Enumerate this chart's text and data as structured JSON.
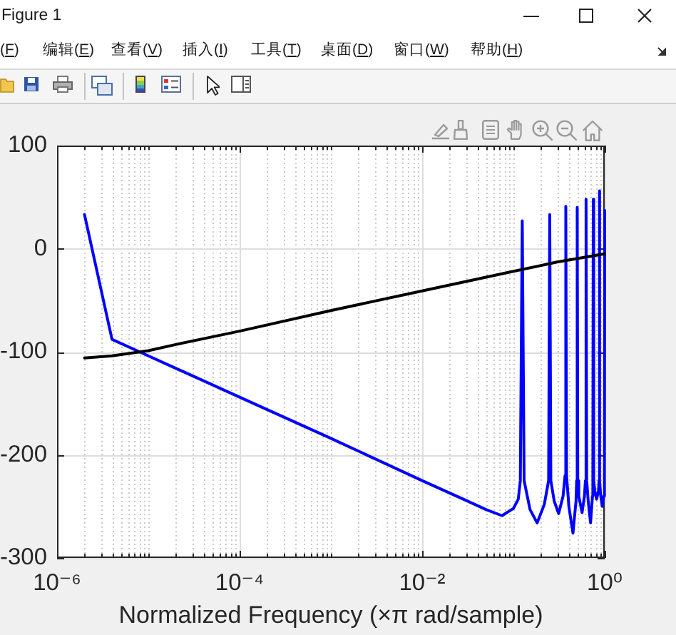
{
  "chart_data": {
    "type": "line",
    "xlabel": "Normalized Frequency (×π rad/sample)",
    "annotations": [
      "Figure 1",
      "(F)",
      "编辑(E)",
      "查看(V)",
      "插入(I)",
      "工具(T)",
      "桌面(D)",
      "窗口(W)",
      "帮助(H)"
    ],
    "series": [
      {
        "color": "#0000ff",
        "x": [
          2e-06,
          4e-06,
          1e-05,
          0.0001,
          0.001,
          0.01,
          0.03,
          0.05,
          0.075,
          0.1,
          0.113,
          0.119,
          0.125,
          0.131,
          0.152,
          0.182,
          0.218,
          0.243,
          0.25,
          0.257,
          0.28,
          0.313,
          0.35,
          0.368,
          0.375,
          0.382,
          0.405,
          0.449,
          0.485,
          0.493,
          0.5,
          0.507,
          0.52,
          0.565,
          0.6,
          0.615,
          0.625,
          0.635,
          0.66,
          0.7,
          0.735,
          0.742,
          0.75,
          0.758,
          0.78,
          0.815,
          0.855,
          0.868,
          0.875,
          0.882,
          0.905,
          0.94,
          0.975,
          0.993,
          1
        ],
        "values": [
          33,
          -88,
          -104,
          -144,
          -184,
          -225,
          -244,
          -253,
          -259,
          -252,
          -243,
          -225,
          27,
          -225,
          -253,
          -266,
          -248,
          -225,
          33,
          -225,
          -245,
          -257,
          -240,
          -220,
          41,
          -220,
          -250,
          -276,
          -245,
          -225,
          40,
          -225,
          -240,
          -256,
          -240,
          -225,
          48,
          -225,
          -245,
          -266,
          -240,
          -225,
          48,
          -225,
          -235,
          -243,
          -235,
          -225,
          56,
          -225,
          -240,
          -250,
          -240,
          -225,
          37
        ]
      },
      {
        "color": "#000000",
        "x": [
          2e-06,
          4e-06,
          1e-05,
          2e-05,
          0.0001,
          0.001,
          0.01,
          0.1,
          0.3,
          1
        ],
        "values": [
          -106,
          -104,
          -99,
          -93,
          -80,
          -60,
          -41,
          -22,
          -13,
          -5
        ]
      }
    ],
    "xlim": [
      1e-06,
      1
    ],
    "ylim": [
      -300,
      100
    ],
    "xticks": [
      {
        "value": 1e-06,
        "label": "10⁻⁶"
      },
      {
        "value": 2e-06,
        "label": null
      },
      {
        "value": 3e-06,
        "label": null
      },
      {
        "value": 4e-06,
        "label": null
      },
      {
        "value": 5e-06,
        "label": null
      },
      {
        "value": 6e-06,
        "label": null
      },
      {
        "value": 7e-06,
        "label": null
      },
      {
        "value": 8e-06,
        "label": null
      },
      {
        "value": 9e-06,
        "label": null
      },
      {
        "value": 1e-05,
        "label": null
      },
      {
        "value": 2e-05,
        "label": null
      },
      {
        "value": 3e-05,
        "label": null
      },
      {
        "value": 4e-05,
        "label": null
      },
      {
        "value": 5e-05,
        "label": null
      },
      {
        "value": 6e-05,
        "label": null
      },
      {
        "value": 7e-05,
        "label": null
      },
      {
        "value": 8e-05,
        "label": null
      },
      {
        "value": 9e-05,
        "label": null
      },
      {
        "value": 0.0001,
        "label": "10⁻⁴"
      },
      {
        "value": 0.0002,
        "label": null
      },
      {
        "value": 0.0003,
        "label": null
      },
      {
        "value": 0.0004,
        "label": null
      },
      {
        "value": 0.0005,
        "label": null
      },
      {
        "value": 0.0006,
        "label": null
      },
      {
        "value": 0.0007,
        "label": null
      },
      {
        "value": 0.0008,
        "label": null
      },
      {
        "value": 0.0009,
        "label": null
      },
      {
        "value": 0.001,
        "label": null
      },
      {
        "value": 0.002,
        "label": null
      },
      {
        "value": 0.003,
        "label": null
      },
      {
        "value": 0.004,
        "label": null
      },
      {
        "value": 0.005,
        "label": null
      },
      {
        "value": 0.006,
        "label": null
      },
      {
        "value": 0.007,
        "label": null
      },
      {
        "value": 0.008,
        "label": null
      },
      {
        "value": 0.009,
        "label": null
      },
      {
        "value": 0.01,
        "label": "10⁻²"
      },
      {
        "value": 0.02,
        "label": null
      },
      {
        "value": 0.03,
        "label": null
      },
      {
        "value": 0.04,
        "label": null
      },
      {
        "value": 0.05,
        "label": null
      },
      {
        "value": 0.06,
        "label": null
      },
      {
        "value": 0.07,
        "label": null
      },
      {
        "value": 0.08,
        "label": null
      },
      {
        "value": 0.09,
        "label": null
      },
      {
        "value": 0.1,
        "label": null
      },
      {
        "value": 0.2,
        "label": null
      },
      {
        "value": 0.3,
        "label": null
      },
      {
        "value": 0.4,
        "label": null
      },
      {
        "value": 0.5,
        "label": null
      },
      {
        "value": 0.6,
        "label": null
      },
      {
        "value": 0.7,
        "label": null
      },
      {
        "value": 0.8,
        "label": null
      },
      {
        "value": 0.9,
        "label": null
      },
      {
        "value": 1,
        "label": "10⁰"
      }
    ],
    "yticks": [
      -300,
      -200,
      -100,
      0,
      100
    ],
    "log": "x",
    "grid": true
  }
}
